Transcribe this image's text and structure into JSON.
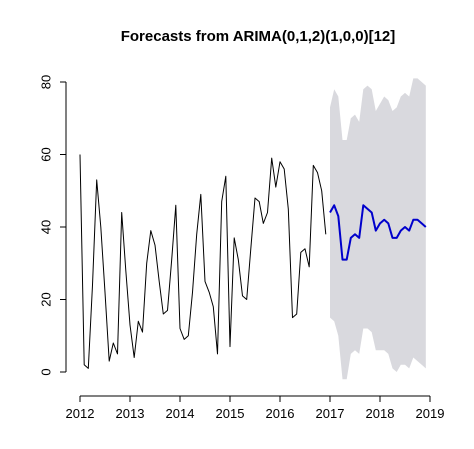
{
  "chart_data": {
    "type": "line",
    "title": "Forecasts from ARIMA(0,1,2)(1,0,0)[12]",
    "xlabel": "",
    "ylabel": "",
    "xlim": [
      2012,
      2019
    ],
    "ylim": [
      0,
      80
    ],
    "x_ticks": [
      2012,
      2013,
      2014,
      2015,
      2016,
      2017,
      2018,
      2019
    ],
    "x_tick_labels": [
      "2012",
      "2013",
      "2014",
      "2015",
      "2016",
      "2017",
      "2018",
      "2019"
    ],
    "y_ticks": [
      0,
      20,
      40,
      60,
      80
    ],
    "y_tick_labels": [
      "0",
      "20",
      "40",
      "60",
      "80"
    ],
    "grid": false,
    "legend": "none",
    "colors": {
      "observed": "#000000",
      "forecast": "#0000cc",
      "interval": "#d9d9de"
    },
    "series": [
      {
        "role": "observed",
        "x": [
          2012.0,
          2012.083,
          2012.167,
          2012.25,
          2012.333,
          2012.417,
          2012.5,
          2012.583,
          2012.667,
          2012.75,
          2012.833,
          2012.917,
          2013.0,
          2013.083,
          2013.167,
          2013.25,
          2013.333,
          2013.417,
          2013.5,
          2013.583,
          2013.667,
          2013.75,
          2013.833,
          2013.917,
          2014.0,
          2014.083,
          2014.167,
          2014.25,
          2014.333,
          2014.417,
          2014.5,
          2014.583,
          2014.667,
          2014.75,
          2014.833,
          2014.917,
          2015.0,
          2015.083,
          2015.167,
          2015.25,
          2015.333,
          2015.417,
          2015.5,
          2015.583,
          2015.667,
          2015.75,
          2015.833,
          2015.917,
          2016.0,
          2016.083,
          2016.167,
          2016.25,
          2016.333,
          2016.417,
          2016.5,
          2016.583,
          2016.667,
          2016.75,
          2016.833,
          2016.917
        ],
        "y": [
          60,
          2,
          1,
          24,
          53,
          40,
          22,
          3,
          8,
          5,
          44,
          28,
          13,
          4,
          14,
          11,
          30,
          39,
          35,
          25,
          16,
          17,
          31,
          46,
          12,
          9,
          10,
          22,
          38,
          49,
          25,
          22,
          18,
          5,
          47,
          54,
          7,
          37,
          31,
          21,
          20,
          34,
          48,
          47,
          41,
          44,
          59,
          51,
          58,
          56,
          45,
          15,
          16,
          33,
          34,
          29,
          57,
          55,
          50,
          38
        ]
      },
      {
        "role": "forecast",
        "x": [
          2017.0,
          2017.083,
          2017.167,
          2017.25,
          2017.333,
          2017.417,
          2017.5,
          2017.583,
          2017.667,
          2017.75,
          2017.833,
          2017.917,
          2018.0,
          2018.083,
          2018.167,
          2018.25,
          2018.333,
          2018.417,
          2018.5,
          2018.583,
          2018.667,
          2018.75,
          2018.833,
          2018.917
        ],
        "y": [
          44,
          46,
          43,
          31,
          31,
          37,
          38,
          37,
          46,
          45,
          44,
          39,
          41,
          42,
          41,
          37,
          37,
          39,
          40,
          39,
          42,
          42,
          41,
          40
        ]
      }
    ],
    "interval": {
      "x": [
        2017.0,
        2017.083,
        2017.167,
        2017.25,
        2017.333,
        2017.417,
        2017.5,
        2017.583,
        2017.667,
        2017.75,
        2017.833,
        2017.917,
        2018.0,
        2018.083,
        2018.167,
        2018.25,
        2018.333,
        2018.417,
        2018.5,
        2018.583,
        2018.667,
        2018.75,
        2018.833,
        2018.917
      ],
      "lower": [
        15,
        14,
        10,
        -2,
        -2,
        5,
        6,
        5,
        12,
        12,
        11,
        6,
        6,
        6,
        5,
        1,
        0,
        2,
        2,
        1,
        4,
        3,
        2,
        1
      ],
      "upper": [
        73,
        78,
        76,
        64,
        64,
        70,
        71,
        69,
        78,
        79,
        78,
        72,
        74,
        76,
        75,
        72,
        73,
        76,
        77,
        76,
        81,
        81,
        80,
        79
      ]
    }
  }
}
